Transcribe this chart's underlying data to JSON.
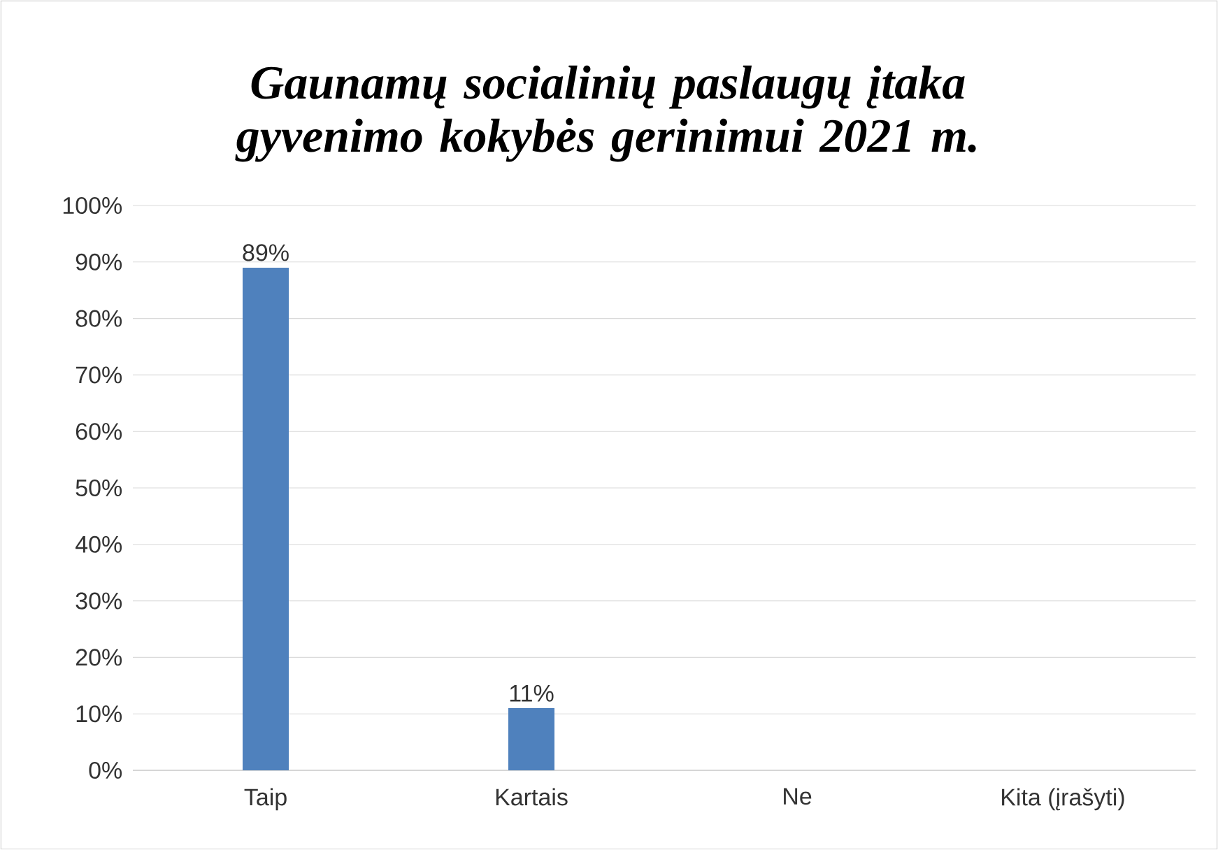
{
  "chart_data": {
    "type": "bar",
    "title": "Gaunamų socialinių paslaugų įtaka gyvenimo kokybės gerinimui 2021 m.",
    "categories": [
      "Taip",
      "Kartais",
      "Ne",
      "Kita  (įrašyti)"
    ],
    "values": [
      89,
      11,
      0,
      0
    ],
    "value_labels": [
      "89%",
      "11%",
      null,
      null
    ],
    "color": "#4f81bd",
    "ylim": [
      0,
      100
    ],
    "yticks": [
      {
        "value": 0,
        "label": "0%"
      },
      {
        "value": 10,
        "label": "10%"
      },
      {
        "value": 20,
        "label": "20%"
      },
      {
        "value": 30,
        "label": "30%"
      },
      {
        "value": 40,
        "label": "40%"
      },
      {
        "value": 50,
        "label": "50%"
      },
      {
        "value": 60,
        "label": "60%"
      },
      {
        "value": 70,
        "label": "70%"
      },
      {
        "value": 80,
        "label": "80%"
      },
      {
        "value": 90,
        "label": "90%"
      },
      {
        "value": 100,
        "label": "100%"
      }
    ],
    "grid": "y"
  }
}
